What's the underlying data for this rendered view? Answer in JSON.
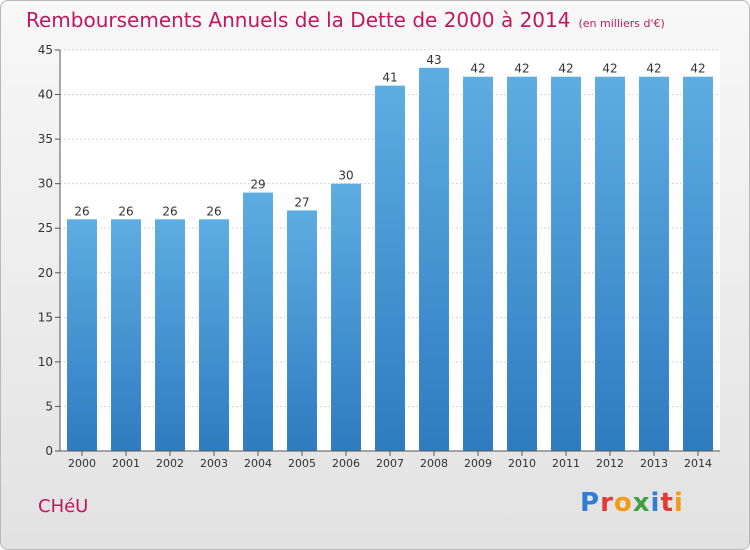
{
  "header": {
    "title": "Remboursements Annuels de la Dette de 2000 à 2014",
    "subtitle": "(en milliers d'€)"
  },
  "footer": {
    "commune": "CHéU",
    "logo_letters": [
      "P",
      "r",
      "o",
      "x",
      "i",
      "t",
      "i"
    ],
    "logo_colors": [
      "#2e7dd7",
      "#e53935",
      "#f39c12",
      "#43a047",
      "#2e7dd7",
      "#e53935",
      "#f39c12"
    ]
  },
  "chart_data": {
    "type": "bar",
    "categories": [
      "2000",
      "2001",
      "2002",
      "2003",
      "2004",
      "2005",
      "2006",
      "2007",
      "2008",
      "2009",
      "2010",
      "2011",
      "2012",
      "2013",
      "2014"
    ],
    "values": [
      26,
      26,
      26,
      26,
      29,
      27,
      30,
      41,
      43,
      42,
      42,
      42,
      42,
      42,
      42
    ],
    "title": "Remboursements Annuels de la Dette de 2000 à 2014",
    "ylim": [
      0,
      45
    ],
    "yticks": [
      0,
      5,
      10,
      15,
      20,
      25,
      30,
      35,
      40,
      45
    ],
    "grid": true,
    "bar_color_top": "#5dade2",
    "bar_color_bottom": "#2e7bbf"
  }
}
